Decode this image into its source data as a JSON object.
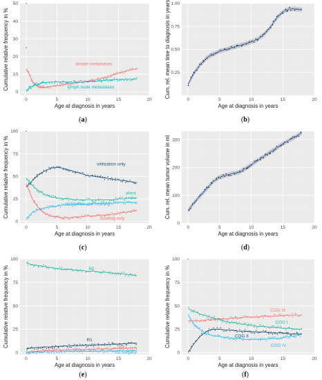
{
  "chart_data": [
    {
      "id": "a",
      "type": "scatter",
      "panel_label": "a",
      "xlabel": "Age at diagnosis in years",
      "ylabel": "Cumulative relative frequency in %",
      "xlim": [
        -1,
        20
      ],
      "ylim": [
        -2,
        50
      ],
      "xticks": [
        0,
        5,
        10,
        15,
        20
      ],
      "yticks": [
        0,
        10,
        20,
        30,
        40,
        50
      ],
      "grid": true,
      "series": [
        {
          "name": "distant metastases",
          "color": "#f8766d",
          "x": [
            0,
            0.5,
            1,
            1.5,
            2,
            2.5,
            3,
            4,
            5,
            6,
            7,
            8,
            9,
            10,
            11,
            12,
            13,
            14,
            15,
            16,
            17,
            18
          ],
          "y": [
            13,
            10,
            6,
            4,
            3,
            2.5,
            2.5,
            3,
            3.5,
            4,
            4.5,
            5,
            5.5,
            6,
            6.5,
            7.5,
            8.5,
            9.5,
            10.5,
            11.5,
            12.5,
            13
          ]
        },
        {
          "name": "lymph node metastases",
          "color": "#00bfc4",
          "x": [
            0,
            0.5,
            1,
            1.5,
            2,
            2.5,
            3,
            4,
            5,
            6,
            7,
            8,
            9,
            10,
            11,
            12,
            13,
            14,
            15,
            16,
            17,
            18
          ],
          "y": [
            0,
            2,
            3,
            4,
            4.5,
            5,
            5.2,
            5.5,
            5.6,
            5.6,
            5.5,
            5.4,
            5.5,
            5.7,
            6,
            6.2,
            6.5,
            6.8,
            7,
            7,
            7.2,
            7.3
          ]
        }
      ],
      "label_positions_data": [
        {
          "series": 0,
          "x": 11,
          "y": 15
        },
        {
          "series": 1,
          "x": 10.5,
          "y": 2
        }
      ],
      "outliers": [
        {
          "x": 0,
          "y": 50
        },
        {
          "x": 0,
          "y": 25
        }
      ]
    },
    {
      "id": "b",
      "type": "line",
      "panel_label": "b",
      "xlabel": "Age at diagnosis in years",
      "ylabel": "Cum. rel. mean time to diagnosis in years",
      "xlim": [
        -1,
        20
      ],
      "ylim": [
        0,
        1.0
      ],
      "xticks": [
        0,
        5,
        10,
        15,
        20
      ],
      "yticks": [
        0.25,
        0.5,
        0.75,
        1.0
      ],
      "ytick_labels": [
        "0.25",
        "0.50",
        "0.75",
        "1.00"
      ],
      "grid": true,
      "series": [
        {
          "name": "",
          "color": "#3366cc",
          "x": [
            0,
            1,
            2,
            3,
            4,
            5,
            6,
            7,
            8,
            9,
            10,
            11,
            12,
            13,
            14,
            15,
            16,
            17,
            18
          ],
          "y": [
            0.12,
            0.25,
            0.34,
            0.41,
            0.45,
            0.48,
            0.5,
            0.52,
            0.54,
            0.56,
            0.58,
            0.61,
            0.66,
            0.74,
            0.84,
            0.91,
            0.94,
            0.94,
            0.93
          ]
        }
      ]
    },
    {
      "id": "c",
      "type": "scatter",
      "panel_label": "c",
      "xlabel": "Age at diagnosis in years",
      "ylabel": "Cumulative relative frequency in %",
      "xlim": [
        -1,
        20
      ],
      "ylim": [
        -2,
        100
      ],
      "xticks": [
        0,
        5,
        10,
        15,
        20
      ],
      "yticks": [
        0,
        25,
        50,
        75,
        100
      ],
      "grid": true,
      "series": [
        {
          "name": "virilization only",
          "color": "#1f4e79",
          "x": [
            0,
            1,
            2,
            3,
            4,
            5,
            6,
            7,
            8,
            9,
            10,
            11,
            12,
            13,
            14,
            15,
            16,
            17,
            18
          ],
          "y": [
            38,
            45,
            52,
            56,
            59,
            60,
            59,
            57,
            55,
            53,
            51,
            50,
            49,
            48,
            47,
            46,
            45,
            44,
            43
          ]
        },
        {
          "name": "silent",
          "color": "#2ab8a3",
          "x": [
            0,
            1,
            2,
            3,
            4,
            5,
            6,
            7,
            8,
            9,
            10,
            11,
            12,
            13,
            14,
            15,
            16,
            17,
            18
          ],
          "y": [
            48,
            40,
            34,
            30,
            27,
            26,
            25,
            25,
            24,
            24,
            24,
            24,
            24,
            24,
            24,
            25,
            25,
            26,
            26
          ]
        },
        {
          "name": "virilization and cushing",
          "color": "#33bbee",
          "x": [
            0,
            1,
            2,
            3,
            4,
            5,
            6,
            7,
            8,
            9,
            10,
            11,
            12,
            13,
            14,
            15,
            16,
            17,
            18
          ],
          "y": [
            2,
            10,
            13,
            15,
            16,
            17,
            18,
            18,
            19,
            19,
            19,
            20,
            20,
            20,
            20,
            21,
            21,
            21,
            21
          ]
        },
        {
          "name": "cushing only",
          "color": "#f8766d",
          "x": [
            0,
            1,
            2,
            3,
            4,
            5,
            6,
            7,
            8,
            9,
            10,
            11,
            12,
            13,
            14,
            15,
            16,
            17,
            18
          ],
          "y": [
            42,
            25,
            15,
            9,
            6,
            5,
            4,
            4,
            5,
            5,
            6,
            6,
            7,
            7,
            8,
            9,
            10,
            11,
            12
          ]
        }
      ],
      "label_positions_data": [
        {
          "series": 0,
          "x": 13.8,
          "y": 62
        },
        {
          "series": 1,
          "x": 17,
          "y": 30
        },
        {
          "series": 2,
          "x": 10,
          "y": 18
        },
        {
          "series": 3,
          "x": 14,
          "y": 2
        }
      ],
      "outliers": [
        {
          "x": 0,
          "y": 100
        }
      ]
    },
    {
      "id": "d",
      "type": "line",
      "panel_label": "d",
      "xlabel": "Age at diagnosis in years",
      "ylabel": "Cum. rel. mean tumor volume in ml",
      "xlim": [
        -1,
        20
      ],
      "ylim": [
        0,
        330
      ],
      "xticks": [
        0,
        5,
        10,
        15,
        20
      ],
      "yticks": [
        0,
        100,
        200,
        300
      ],
      "grid": true,
      "series": [
        {
          "name": "",
          "color": "#3366cc",
          "x": [
            0,
            1,
            2,
            3,
            4,
            5,
            6,
            7,
            8,
            9,
            10,
            11,
            12,
            13,
            14,
            15,
            16,
            17,
            18
          ],
          "y": [
            45,
            75,
            100,
            125,
            150,
            165,
            172,
            178,
            182,
            195,
            210,
            225,
            240,
            255,
            270,
            285,
            298,
            310,
            325
          ]
        }
      ]
    },
    {
      "id": "e",
      "type": "scatter",
      "panel_label": "e",
      "xlabel": "Age at diagnosis in years",
      "ylabel": "Cumulative relative frequency in %",
      "xlim": [
        -1,
        20
      ],
      "ylim": [
        -2,
        100
      ],
      "xticks": [
        0,
        5,
        10,
        15,
        20
      ],
      "yticks": [
        0,
        25,
        50,
        75,
        100
      ],
      "grid": true,
      "series": [
        {
          "name": "R0",
          "color": "#2ab8a3",
          "x": [
            0,
            1,
            2,
            3,
            4,
            5,
            6,
            7,
            8,
            9,
            10,
            11,
            12,
            13,
            14,
            15,
            16,
            17,
            18
          ],
          "y": [
            96,
            94,
            93,
            92,
            91,
            90,
            89,
            89,
            88,
            88,
            87,
            87,
            86,
            86,
            85,
            85,
            84,
            83,
            82
          ]
        },
        {
          "name": "R1",
          "color": "#1f4e79",
          "x": [
            0,
            1,
            2,
            3,
            4,
            5,
            6,
            7,
            8,
            9,
            10,
            11,
            12,
            13,
            14,
            15,
            16,
            17,
            18
          ],
          "y": [
            4,
            5,
            5.5,
            6,
            6,
            6.5,
            7,
            7,
            7.5,
            7.5,
            8,
            8,
            8.5,
            8.5,
            9,
            9,
            9.5,
            10,
            10
          ]
        },
        {
          "name": "R2",
          "color": "#f8766d",
          "x": [
            0,
            1,
            2,
            3,
            4,
            5,
            6,
            7,
            8,
            9,
            10,
            11,
            12,
            13,
            14,
            15,
            16,
            17,
            18
          ],
          "y": [
            0.5,
            1,
            1.5,
            2,
            2,
            2.5,
            2.5,
            3,
            3,
            3,
            3.5,
            3.5,
            4,
            4,
            4,
            4.5,
            4.5,
            5,
            5
          ]
        },
        {
          "name": "no surgery",
          "color": "#33bbee",
          "x": [
            0,
            1,
            2,
            3,
            4,
            5,
            6,
            7,
            8,
            9,
            10,
            11,
            12,
            13,
            14,
            15,
            16,
            17,
            18
          ],
          "y": [
            0,
            0.3,
            0.5,
            0.6,
            0.8,
            1,
            1,
            1.2,
            1.2,
            1.3,
            1.4,
            1.5,
            1.5,
            1.6,
            1.7,
            1.8,
            1.9,
            2,
            2
          ]
        }
      ],
      "label_positions_data": [
        {
          "series": 0,
          "x": 10.6,
          "y": 88
        },
        {
          "series": 1,
          "x": 10.3,
          "y": 12
        },
        {
          "series": 2,
          "x": 15.5,
          "y": 4.5
        },
        {
          "series": 3,
          "x": 16.2,
          "y": -1.2
        }
      ]
    },
    {
      "id": "f",
      "type": "scatter",
      "panel_label": "f",
      "xlabel": "Age at diagnosis in years",
      "ylabel": "Cumulative relative frequency in %",
      "xlim": [
        -1,
        20
      ],
      "ylim": [
        -2,
        100
      ],
      "xticks": [
        0,
        5,
        10,
        15,
        20
      ],
      "yticks": [
        0,
        25,
        50,
        75,
        100
      ],
      "grid": true,
      "series": [
        {
          "name": "COG III",
          "color": "#f8766d",
          "x": [
            0,
            1,
            2,
            3,
            4,
            5,
            6,
            7,
            8,
            9,
            10,
            11,
            12,
            13,
            14,
            15,
            16,
            17,
            18
          ],
          "y": [
            34,
            34,
            34,
            35,
            35,
            36,
            36,
            37,
            37,
            38,
            38,
            38,
            39,
            39,
            39,
            40,
            40,
            40,
            40
          ]
        },
        {
          "name": "COG I",
          "color": "#2ab8a3",
          "x": [
            0,
            1,
            2,
            3,
            4,
            5,
            6,
            7,
            8,
            9,
            10,
            11,
            12,
            13,
            14,
            15,
            16,
            17,
            18
          ],
          "y": [
            47,
            44,
            41,
            39,
            37,
            35,
            33,
            32,
            31,
            30,
            29,
            28,
            28,
            27,
            27,
            26,
            26,
            25,
            25
          ]
        },
        {
          "name": "COG II",
          "color": "#1f4e79",
          "x": [
            0,
            1,
            2,
            3,
            4,
            5,
            6,
            7,
            8,
            9,
            10,
            11,
            12,
            13,
            14,
            15,
            16,
            17,
            18
          ],
          "y": [
            0,
            10,
            18,
            23,
            25,
            25,
            24,
            24,
            23,
            23,
            22,
            22,
            22,
            21,
            21,
            21,
            20,
            20,
            20
          ]
        },
        {
          "name": "COG IV",
          "color": "#33bbee",
          "x": [
            0,
            1,
            2,
            3,
            4,
            5,
            6,
            7,
            8,
            9,
            10,
            11,
            12,
            13,
            14,
            15,
            16,
            17,
            18
          ],
          "y": [
            40,
            30,
            24,
            20,
            18,
            17,
            16,
            15,
            15,
            14,
            14,
            14,
            14,
            15,
            15,
            16,
            17,
            18,
            19
          ]
        }
      ],
      "label_positions_data": [
        {
          "series": 0,
          "x": 14.2,
          "y": 44
        },
        {
          "series": 1,
          "x": 14.8,
          "y": 31
        },
        {
          "series": 2,
          "x": 8.5,
          "y": 16
        },
        {
          "series": 3,
          "x": 14.3,
          "y": 6
        }
      ],
      "outliers": [
        {
          "x": 0,
          "y": 100
        }
      ]
    }
  ]
}
